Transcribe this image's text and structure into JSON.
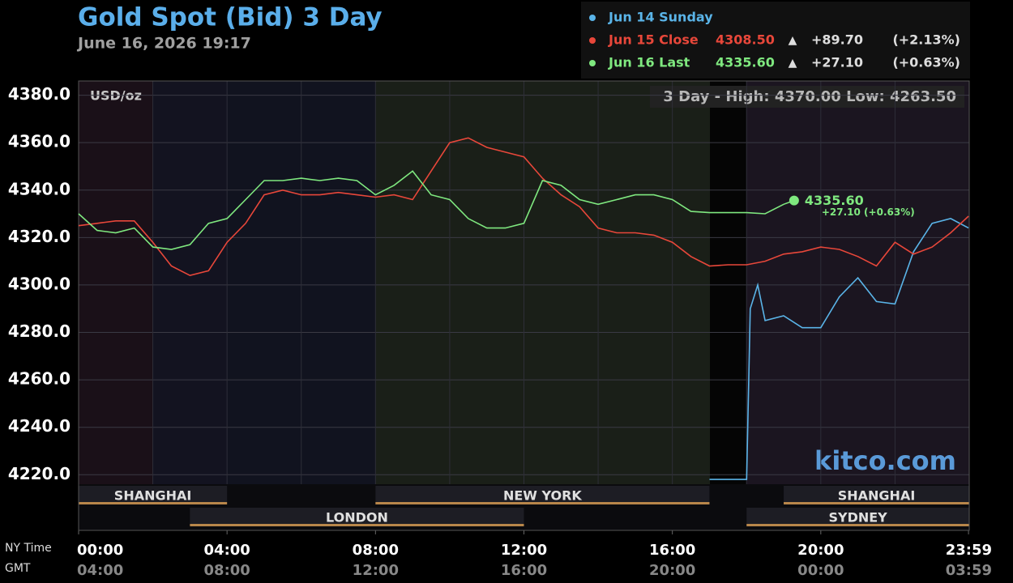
{
  "chart_data": {
    "type": "line",
    "title": "Gold Spot (Bid) 3 Day",
    "subtitle": "June 16, 2026 19:17",
    "unit_label": "USD/oz",
    "range_label": "3 Day - High: 4370.00  Low: 4263.50",
    "watermark": "kitco.com",
    "x_axis_label": "NY Time",
    "x2_axis_label": "GMT",
    "xlim": [
      0,
      24
    ],
    "xticks": [
      {
        "value": 0,
        "label": "00:00"
      },
      {
        "value": 4,
        "label": "04:00"
      },
      {
        "value": 8,
        "label": "08:00"
      },
      {
        "value": 12,
        "label": "12:00"
      },
      {
        "value": 16,
        "label": "16:00"
      },
      {
        "value": 20,
        "label": "20:00"
      },
      {
        "value": 23.98,
        "label": "23:59"
      }
    ],
    "gmt_labels": [
      "04:00",
      "08:00",
      "12:00",
      "16:00",
      "20:00",
      "00:00",
      "03:59"
    ],
    "ylim": [
      4216,
      4386
    ],
    "yticks": [
      {
        "value": 4220,
        "label": "4220.0"
      },
      {
        "value": 4240,
        "label": "4240.0"
      },
      {
        "value": 4260,
        "label": "4260.0"
      },
      {
        "value": 4280,
        "label": "4280.0"
      },
      {
        "value": 4300,
        "label": "4300.0"
      },
      {
        "value": 4320,
        "label": "4320.0"
      },
      {
        "value": 4340,
        "label": "4340.0"
      },
      {
        "value": 4360,
        "label": "4360.0"
      },
      {
        "value": 4380,
        "label": "4380.0"
      }
    ],
    "grid": true,
    "series": [
      {
        "name": "Jun 14 Sunday",
        "color": "#5ab4e8",
        "x": [
          17,
          18,
          18.1,
          18.3,
          18.5,
          19,
          19.5,
          20,
          20.5,
          21,
          21.5,
          22,
          22.5,
          23,
          23.5,
          23.98
        ],
        "values": [
          4218,
          4218,
          4290,
          4300,
          4285,
          4287,
          4282,
          4282,
          4295,
          4303,
          4293,
          4292,
          4314,
          4326,
          4328,
          4324
        ]
      },
      {
        "name": "Jun 15 Close",
        "color": "#e8473a",
        "close": "4308.50",
        "arrow": "▲",
        "change": "+89.70",
        "pct": "(+2.13%)",
        "x": [
          0,
          0.5,
          1,
          1.5,
          2,
          2.5,
          3,
          3.5,
          4,
          4.5,
          5,
          5.5,
          6,
          6.5,
          7,
          7.5,
          8,
          8.5,
          9,
          9.5,
          10,
          10.5,
          11,
          11.5,
          12,
          12.5,
          13,
          13.5,
          14,
          14.5,
          15,
          15.5,
          16,
          16.5,
          17,
          17.5,
          18,
          18.5,
          19,
          19.5,
          20,
          20.5,
          21,
          21.5,
          22,
          22.5,
          23,
          23.5,
          23.98
        ],
        "values": [
          4325,
          4326,
          4327,
          4327,
          4318,
          4308,
          4304,
          4306,
          4318,
          4326,
          4338,
          4340,
          4338,
          4338,
          4339,
          4338,
          4337,
          4338,
          4336,
          4348,
          4360,
          4362,
          4358,
          4356,
          4354,
          4345,
          4338,
          4333,
          4324,
          4322,
          4322,
          4321,
          4318,
          4312,
          4308,
          4308.5,
          4308.5,
          4310,
          4313,
          4314,
          4316,
          4315,
          4312,
          4308,
          4318,
          4313,
          4316,
          4322,
          4329
        ]
      },
      {
        "name": "Jun 16 Last",
        "color": "#7fe87f",
        "close": "4335.60",
        "arrow": "▲",
        "change": "+27.10",
        "pct": "(+0.63%)",
        "x": [
          0,
          0.5,
          1,
          1.5,
          2,
          2.5,
          3,
          3.5,
          4,
          4.5,
          5,
          5.5,
          6,
          6.5,
          7,
          7.5,
          8,
          8.5,
          9,
          9.5,
          10,
          10.5,
          11,
          11.5,
          12,
          12.5,
          13,
          13.5,
          14,
          14.5,
          15,
          15.5,
          16,
          16.5,
          17,
          17.5,
          18,
          18.5,
          19,
          19.28
        ],
        "values": [
          4330,
          4323,
          4322,
          4324,
          4316,
          4315,
          4317,
          4326,
          4328,
          4336,
          4344,
          4344,
          4345,
          4344,
          4345,
          4344,
          4338,
          4342,
          4348,
          4338,
          4336,
          4328,
          4324,
          4324,
          4326,
          4344,
          4342,
          4336,
          4334,
          4336,
          4338,
          4338,
          4336,
          4331,
          4330.5,
          4330.5,
          4330.5,
          4330,
          4334,
          4335.6
        ]
      }
    ],
    "end_label": "4335.60",
    "end_change": "+27.10 (+0.63%)",
    "sessions": [
      {
        "label": "SHANGHAI",
        "start": 0,
        "end": 4
      },
      {
        "label": "LONDON",
        "start": 3,
        "end": 12
      },
      {
        "label": "NEW YORK",
        "start": 8,
        "end": 17
      },
      {
        "label": "SHANGHAI",
        "start": 19,
        "end": 24
      },
      {
        "label": "SYDNEY",
        "start": 18,
        "end": 24
      }
    ]
  }
}
